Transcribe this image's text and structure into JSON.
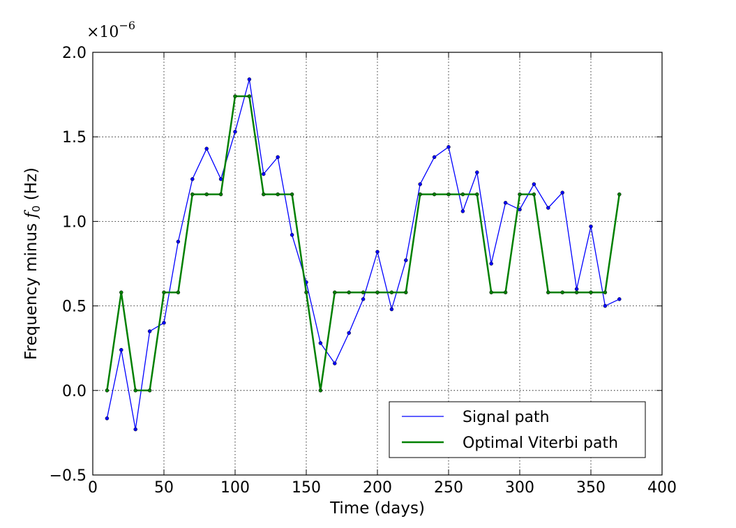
{
  "chart_data": {
    "type": "line",
    "xlabel": "Time (days)",
    "ylabel_prefix": "Frequency minus ",
    "ylabel_symbol": "f",
    "ylabel_subscript": "0",
    "ylabel_suffix": "  (Hz)",
    "y_multiplier": {
      "base": "×10",
      "exponent": "−6"
    },
    "xlim": [
      0,
      400
    ],
    "ylim": [
      -0.5,
      2.0
    ],
    "y_scale_factor": 1e-06,
    "xticks": [
      0,
      50,
      100,
      150,
      200,
      250,
      300,
      350,
      400
    ],
    "yticks": [
      -0.5,
      0.0,
      0.5,
      1.0,
      1.5,
      2.0
    ],
    "xtick_labels": [
      "0",
      "50",
      "100",
      "150",
      "200",
      "250",
      "300",
      "350",
      "400"
    ],
    "ytick_labels": [
      "−0.5",
      "0.0",
      "0.5",
      "1.0",
      "1.5",
      "2.0"
    ],
    "grid": true,
    "legend_position": "lower-right",
    "x": [
      10,
      20,
      30,
      40,
      50,
      60,
      70,
      80,
      90,
      100,
      110,
      120,
      130,
      140,
      150,
      160,
      170,
      180,
      190,
      200,
      210,
      220,
      230,
      240,
      250,
      260,
      270,
      280,
      290,
      300,
      310,
      320,
      330,
      340,
      350,
      360,
      370
    ],
    "series": [
      {
        "name": "Signal path",
        "color": "#0000ff",
        "linewidth": "thin",
        "values": [
          -0.165,
          0.24,
          -0.23,
          0.35,
          0.4,
          0.88,
          1.25,
          1.43,
          1.25,
          1.53,
          1.84,
          1.28,
          1.38,
          0.92,
          0.64,
          0.28,
          0.16,
          0.34,
          0.54,
          0.82,
          0.48,
          0.77,
          1.22,
          1.38,
          1.44,
          1.06,
          1.29,
          0.75,
          1.11,
          1.07,
          1.22,
          1.08,
          1.17,
          0.6,
          0.97,
          0.5,
          0.54
        ]
      },
      {
        "name": "Optimal Viterbi path",
        "color": "#008000",
        "linewidth": "thick",
        "values": [
          0.0,
          0.58,
          0.0,
          0.0,
          0.58,
          0.58,
          1.16,
          1.16,
          1.16,
          1.74,
          1.74,
          1.16,
          1.16,
          1.16,
          0.58,
          0.0,
          0.58,
          0.58,
          0.58,
          0.58,
          0.58,
          0.58,
          1.16,
          1.16,
          1.16,
          1.16,
          1.16,
          0.58,
          0.58,
          1.16,
          1.16,
          0.58,
          0.58,
          0.58,
          0.58,
          0.58,
          1.16
        ]
      }
    ]
  }
}
